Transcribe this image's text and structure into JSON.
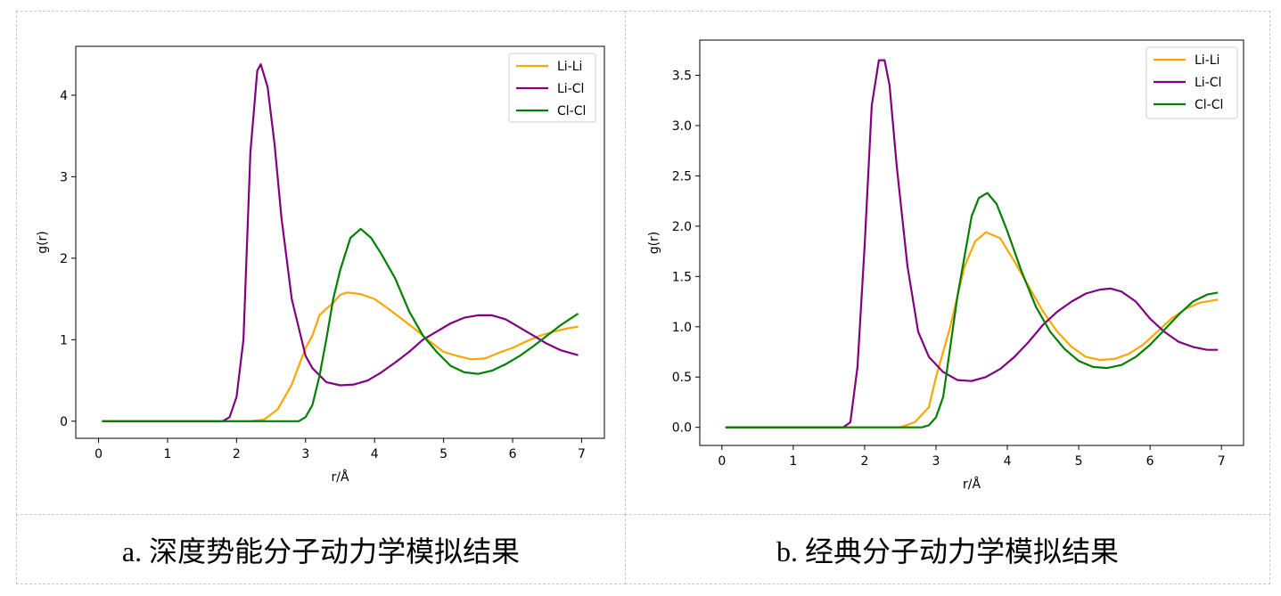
{
  "captions": [
    "a. 深度势能分子动力学模拟结果",
    "b. 经典分子动力学模拟结果"
  ],
  "chart_data": [
    {
      "type": "line",
      "xlabel": "r/Å",
      "ylabel": "g(r)",
      "xlim": [
        -0.33,
        7.33
      ],
      "ylim": [
        -0.21,
        4.6
      ],
      "xticks": [
        "0",
        "1",
        "2",
        "3",
        "4",
        "5",
        "6",
        "7"
      ],
      "yticks": [
        "0",
        "1",
        "2",
        "3",
        "4"
      ],
      "grid": false,
      "legend": "top-right",
      "series": [
        {
          "name": "Li-Li",
          "color": "#FFA500",
          "x": [
            0.05,
            2.2,
            2.4,
            2.6,
            2.8,
            3.0,
            3.1,
            3.2,
            3.3,
            3.4,
            3.5,
            3.6,
            3.8,
            4.0,
            4.2,
            4.4,
            4.6,
            4.8,
            5.0,
            5.2,
            5.4,
            5.6,
            5.8,
            6.0,
            6.2,
            6.4,
            6.6,
            6.8,
            6.95
          ],
          "y": [
            0,
            0,
            0.02,
            0.15,
            0.45,
            0.9,
            1.05,
            1.3,
            1.38,
            1.45,
            1.55,
            1.58,
            1.56,
            1.5,
            1.38,
            1.25,
            1.12,
            0.98,
            0.85,
            0.8,
            0.76,
            0.77,
            0.84,
            0.9,
            0.98,
            1.05,
            1.1,
            1.14,
            1.16
          ]
        },
        {
          "name": "Li-Cl",
          "color": "#800080",
          "x": [
            0.05,
            1.8,
            1.9,
            2.0,
            2.1,
            2.2,
            2.3,
            2.35,
            2.45,
            2.55,
            2.65,
            2.8,
            3.0,
            3.1,
            3.3,
            3.5,
            3.7,
            3.9,
            4.1,
            4.3,
            4.5,
            4.7,
            4.9,
            5.1,
            5.3,
            5.5,
            5.7,
            5.9,
            6.1,
            6.3,
            6.5,
            6.7,
            6.95
          ],
          "y": [
            0,
            0,
            0.05,
            0.3,
            1.0,
            3.3,
            4.3,
            4.38,
            4.1,
            3.4,
            2.5,
            1.5,
            0.8,
            0.65,
            0.48,
            0.44,
            0.45,
            0.5,
            0.6,
            0.72,
            0.85,
            1.0,
            1.1,
            1.2,
            1.27,
            1.3,
            1.3,
            1.25,
            1.15,
            1.05,
            0.95,
            0.87,
            0.81
          ]
        },
        {
          "name": "Cl-Cl",
          "color": "#008000",
          "x": [
            0.05,
            2.9,
            3.0,
            3.1,
            3.2,
            3.3,
            3.4,
            3.5,
            3.65,
            3.8,
            3.95,
            4.1,
            4.3,
            4.5,
            4.7,
            4.9,
            5.1,
            5.3,
            5.5,
            5.7,
            5.9,
            6.1,
            6.3,
            6.5,
            6.7,
            6.95
          ],
          "y": [
            0,
            0,
            0.05,
            0.2,
            0.55,
            1.0,
            1.5,
            1.85,
            2.25,
            2.36,
            2.25,
            2.05,
            1.75,
            1.35,
            1.05,
            0.85,
            0.68,
            0.6,
            0.58,
            0.62,
            0.7,
            0.8,
            0.92,
            1.05,
            1.18,
            1.32
          ]
        }
      ]
    },
    {
      "type": "line",
      "xlabel": "r/Å",
      "ylabel": "g(r)",
      "xlim": [
        -0.31,
        7.31
      ],
      "ylim": [
        -0.18,
        3.85
      ],
      "xticks": [
        "0",
        "1",
        "2",
        "3",
        "4",
        "5",
        "6",
        "7"
      ],
      "yticks": [
        "0.0",
        "0.5",
        "1.0",
        "1.5",
        "2.0",
        "2.5",
        "3.0",
        "3.5"
      ],
      "grid": false,
      "legend": "top-right",
      "series": [
        {
          "name": "Li-Li",
          "color": "#FFA500",
          "x": [
            0.05,
            2.5,
            2.7,
            2.9,
            3.0,
            3.2,
            3.4,
            3.55,
            3.7,
            3.9,
            4.1,
            4.3,
            4.5,
            4.7,
            4.9,
            5.1,
            5.3,
            5.5,
            5.7,
            5.9,
            6.1,
            6.3,
            6.5,
            6.7,
            6.95
          ],
          "y": [
            0,
            0,
            0.05,
            0.2,
            0.5,
            1.0,
            1.6,
            1.85,
            1.94,
            1.88,
            1.65,
            1.4,
            1.15,
            0.95,
            0.8,
            0.7,
            0.67,
            0.68,
            0.73,
            0.82,
            0.95,
            1.08,
            1.18,
            1.24,
            1.27
          ]
        },
        {
          "name": "Li-Cl",
          "color": "#800080",
          "x": [
            0.05,
            1.7,
            1.8,
            1.9,
            2.0,
            2.1,
            2.2,
            2.28,
            2.35,
            2.45,
            2.6,
            2.75,
            2.9,
            3.1,
            3.3,
            3.5,
            3.7,
            3.9,
            4.1,
            4.3,
            4.5,
            4.7,
            4.9,
            5.1,
            5.3,
            5.45,
            5.6,
            5.8,
            6.0,
            6.2,
            6.4,
            6.6,
            6.8,
            6.95
          ],
          "y": [
            0,
            0,
            0.05,
            0.6,
            1.8,
            3.2,
            3.65,
            3.65,
            3.4,
            2.6,
            1.6,
            0.95,
            0.7,
            0.55,
            0.47,
            0.46,
            0.5,
            0.58,
            0.7,
            0.85,
            1.02,
            1.15,
            1.25,
            1.33,
            1.37,
            1.38,
            1.35,
            1.25,
            1.08,
            0.95,
            0.85,
            0.8,
            0.77,
            0.77
          ]
        },
        {
          "name": "Cl-Cl",
          "color": "#008000",
          "x": [
            0.05,
            2.8,
            2.9,
            3.0,
            3.1,
            3.2,
            3.3,
            3.4,
            3.5,
            3.6,
            3.72,
            3.85,
            4.0,
            4.2,
            4.4,
            4.6,
            4.8,
            5.0,
            5.2,
            5.4,
            5.6,
            5.8,
            6.0,
            6.2,
            6.4,
            6.6,
            6.8,
            6.95
          ],
          "y": [
            0,
            0,
            0.02,
            0.1,
            0.3,
            0.8,
            1.3,
            1.7,
            2.1,
            2.28,
            2.33,
            2.22,
            1.95,
            1.55,
            1.2,
            0.95,
            0.78,
            0.66,
            0.6,
            0.59,
            0.62,
            0.7,
            0.82,
            0.97,
            1.12,
            1.25,
            1.32,
            1.34
          ]
        }
      ]
    }
  ]
}
